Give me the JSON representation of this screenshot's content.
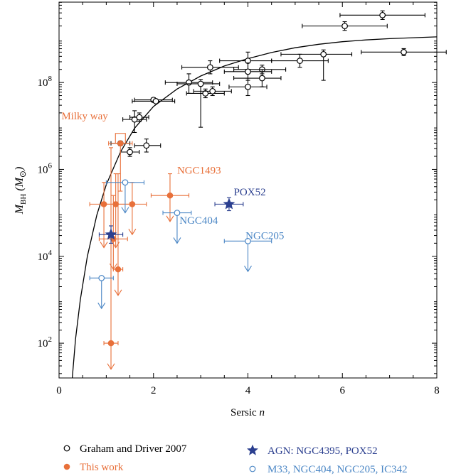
{
  "chart_data": {
    "type": "scatter",
    "title": "",
    "xlabel": "Sersic",
    "xlabel_italic": "n",
    "ylabel": "M",
    "ylabel_sub": "BH",
    "ylabel_unit": "(M",
    "ylabel_unit_sym": "⊙",
    "ylabel_unit_close": ")",
    "xlim": [
      0,
      8
    ],
    "ylim_log10": [
      1.2,
      9.85
    ],
    "yscale": "log",
    "xticks": [
      0,
      2,
      4,
      6,
      8
    ],
    "yticks_log10": [
      2,
      4,
      6,
      8
    ],
    "grid": false,
    "legend_position": "bottom",
    "colors": {
      "graham": "#000000",
      "thiswork": "#e8703a",
      "agn": "#2b3f8f",
      "other": "#4a86c5"
    },
    "legend": [
      {
        "key": "graham",
        "marker": "open-circle",
        "label": "Graham and Driver 2007"
      },
      {
        "key": "thiswork",
        "marker": "filled-circle",
        "label": "This work"
      },
      {
        "key": "agn",
        "marker": "star",
        "label": "AGN: NGC4395, POX52"
      },
      {
        "key": "other",
        "marker": "open-circle",
        "label": "M33, NGC404, NGC205, IC342"
      }
    ],
    "annotations": [
      {
        "text": "Milky way",
        "series": "thiswork",
        "x": 0.05,
        "y": 7.15
      },
      {
        "text": "NGC1493",
        "series": "thiswork",
        "x": 2.5,
        "y": 5.9
      },
      {
        "text": "POX52",
        "series": "agn",
        "x": 3.7,
        "y": 5.4
      },
      {
        "text": "NGC404",
        "series": "other",
        "x": 2.55,
        "y": 4.75
      },
      {
        "text": "NGC205",
        "series": "other",
        "x": 3.95,
        "y": 4.4
      }
    ],
    "relation": {
      "name": "fit",
      "x": [
        0.28,
        0.35,
        0.45,
        0.6,
        0.8,
        1.0,
        1.3,
        1.6,
        2.0,
        2.5,
        3.0,
        3.5,
        4.0,
        4.5,
        5.0,
        5.5,
        6.0,
        6.5,
        7.0,
        7.5,
        8.0
      ],
      "y": [
        1.2,
        2.1,
        3.0,
        4.0,
        4.95,
        5.65,
        6.4,
        6.95,
        7.45,
        7.85,
        8.15,
        8.38,
        8.55,
        8.69,
        8.8,
        8.88,
        8.94,
        8.98,
        9.01,
        9.03,
        9.05
      ]
    },
    "series": [
      {
        "key": "graham",
        "marker": "open-circle",
        "points": [
          {
            "x": 6.85,
            "y": 9.55,
            "xerr": [
              0.9,
              0.9
            ],
            "yerr": [
              0.1,
              0.1
            ]
          },
          {
            "x": 6.05,
            "y": 9.3,
            "xerr": [
              0.9,
              0.9
            ],
            "yerr": [
              0.1,
              0.1
            ]
          },
          {
            "x": 7.3,
            "y": 8.7,
            "xerr": [
              0.9,
              0.9
            ],
            "yerr": [
              0.08,
              0.08
            ]
          },
          {
            "x": 5.6,
            "y": 8.65,
            "xerr": [
              0.9,
              0.6
            ],
            "yerr": [
              0.6,
              0.1
            ]
          },
          {
            "x": 5.1,
            "y": 8.5,
            "xerr": [
              0.6,
              0.6
            ],
            "yerr": [
              0.15,
              0.15
            ]
          },
          {
            "x": 4.3,
            "y": 8.3,
            "xerr": [
              0.6,
              0.5
            ],
            "yerr": [
              0.1,
              0.1
            ]
          },
          {
            "x": 4.0,
            "y": 8.5,
            "xerr": [
              0.6,
              0.5
            ],
            "yerr": [
              0.2,
              0.2
            ]
          },
          {
            "x": 4.0,
            "y": 8.25,
            "xerr": [
              0.5,
              0.5
            ],
            "yerr": [
              0.2,
              0.2
            ]
          },
          {
            "x": 4.3,
            "y": 8.1,
            "xerr": [
              0.6,
              0.4
            ],
            "yerr": [
              0.2,
              0.2
            ]
          },
          {
            "x": 4.0,
            "y": 7.9,
            "xerr": [
              0.4,
              0.4
            ],
            "yerr": [
              0.2,
              0.2
            ]
          },
          {
            "x": 3.2,
            "y": 8.35,
            "xerr": [
              0.6,
              0.6
            ],
            "yerr": [
              0.15,
              0.15
            ]
          },
          {
            "x": 2.75,
            "y": 8.0,
            "xerr": [
              0.5,
              0.5
            ],
            "yerr": [
              0.25,
              0.2
            ]
          },
          {
            "x": 3.0,
            "y": 7.97,
            "xerr": [
              0.5,
              0.4
            ],
            "yerr": [
              1.0,
              0.1
            ]
          },
          {
            "x": 3.1,
            "y": 7.75,
            "xerr": [
              0.4,
              0.4
            ],
            "yerr": [
              0.1,
              0.1
            ]
          },
          {
            "x": 3.25,
            "y": 7.8,
            "xerr": [
              0.4,
              0.4
            ],
            "yerr": [
              0.1,
              0.1
            ]
          },
          {
            "x": 2.0,
            "y": 7.6,
            "xerr": [
              0.4,
              0.4
            ],
            "yerr": [
              0.05,
              0.05
            ]
          },
          {
            "x": 2.05,
            "y": 7.57,
            "xerr": [
              0.5,
              0.4
            ],
            "yerr": [
              0.05,
              0.05
            ]
          },
          {
            "x": 1.6,
            "y": 7.15,
            "xerr": [
              0.25,
              0.25
            ],
            "yerr": [
              0.3,
              0.2
            ]
          },
          {
            "x": 1.7,
            "y": 7.2,
            "xerr": [
              0.2,
              0.2
            ],
            "yerr": [
              0.1,
              0.1
            ]
          },
          {
            "x": 1.3,
            "y": 6.6,
            "xerr": [
              0.2,
              0.2
            ],
            "yerr": [
              0.05,
              0.05
            ]
          },
          {
            "x": 1.85,
            "y": 6.55,
            "xerr": [
              0.25,
              0.3
            ],
            "yerr": [
              0.15,
              0.15
            ]
          },
          {
            "x": 1.5,
            "y": 6.4,
            "xerr": [
              0.2,
              0.2
            ],
            "yerr": [
              0.1,
              0.1
            ]
          }
        ]
      },
      {
        "key": "thiswork",
        "marker": "filled-circle",
        "points": [
          {
            "x": 1.3,
            "y": 6.6,
            "xerr": [
              0.25,
              0.25
            ],
            "yerr": [
              1.1,
              0.0
            ],
            "upper": false
          },
          {
            "x": 2.35,
            "y": 5.4,
            "xerr": [
              0.4,
              0.4
            ],
            "yerr": [
              0.6,
              0.5
            ],
            "upper": true
          },
          {
            "x": 1.2,
            "y": 5.2,
            "xerr": [
              0.3,
              0.3
            ],
            "yerr": [
              1.0,
              0.7
            ],
            "upper": true
          },
          {
            "x": 0.95,
            "y": 5.2,
            "xerr": [
              0.3,
              0.3
            ],
            "yerr": [
              1.0,
              0.5
            ],
            "upper": true
          },
          {
            "x": 1.55,
            "y": 5.2,
            "xerr": [
              0.3,
              0.3
            ],
            "yerr": [
              0.7,
              0.5
            ],
            "upper": true
          },
          {
            "x": 1.15,
            "y": 4.4,
            "xerr": [
              0.3,
              0.3
            ],
            "yerr": [
              0.7,
              1.0
            ],
            "upper": true
          },
          {
            "x": 1.25,
            "y": 3.7,
            "xerr": [
              0.1,
              0.1
            ],
            "yerr": [
              0.6,
              2.2
            ],
            "upper": true
          },
          {
            "x": 1.1,
            "y": 2.0,
            "xerr": [
              0.15,
              0.15
            ],
            "yerr": [
              0.6,
              4.5
            ],
            "upper": true
          }
        ]
      },
      {
        "key": "agn",
        "marker": "star",
        "points": [
          {
            "x": 3.6,
            "y": 5.2,
            "xerr": [
              0.3,
              0.3
            ],
            "yerr": [
              0.15,
              0.15
            ]
          },
          {
            "x": 1.1,
            "y": 4.5,
            "xerr": [
              0.25,
              0.25
            ],
            "yerr": [
              0.2,
              0.2
            ]
          }
        ]
      },
      {
        "key": "other",
        "marker": "open-circle",
        "points": [
          {
            "x": 1.4,
            "y": 5.7,
            "xerr": [
              0.4,
              0.4
            ],
            "yerr": [
              0.0,
              0.0
            ],
            "upper": true
          },
          {
            "x": 2.5,
            "y": 5.0,
            "xerr": [
              0.3,
              0.3
            ],
            "yerr": [
              0.0,
              0.0
            ],
            "upper": true
          },
          {
            "x": 4.0,
            "y": 4.35,
            "xerr": [
              0.5,
              0.5
            ],
            "yerr": [
              0.0,
              0.0
            ],
            "upper": true
          },
          {
            "x": 0.9,
            "y": 3.5,
            "xerr": [
              0.25,
              0.25
            ],
            "yerr": [
              0.0,
              0.0
            ],
            "upper": true
          }
        ]
      }
    ]
  }
}
